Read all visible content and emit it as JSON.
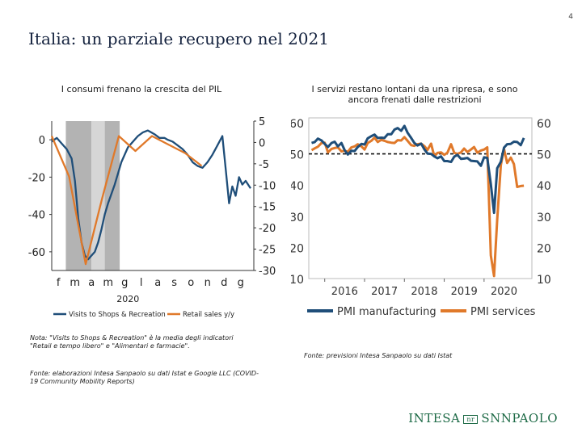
{
  "page": {
    "number": "4",
    "title": "Italia: un parziale recupero nel 2021"
  },
  "left_panel": {
    "subtitle": "I consumi frenano la crescita del PIL",
    "note": "Nota: \"Visits to Shops & Recreation\" è la media degli indicatori \"Retail e tempo libero\" e \"Alimentari e farmacie\".",
    "source": "Fonte: elaborazioni Intesa Sanpaolo su dati Istat e Google LLC (COVID-19 Community Mobility Reports)"
  },
  "right_panel": {
    "subtitle": "I servizi restano lontani da una ripresa, e sono ancora frenati dalle restrizioni",
    "source": "Fonte: previsioni Intesa Sanpaolo su dati Istat"
  },
  "brand": {
    "left": "INTESA",
    "mid": "nr",
    "right": "SNNPAOLO"
  },
  "colors": {
    "blue": "#1f4e79",
    "orange": "#e0792a",
    "shade_dark": "#b3b3b3",
    "shade_light": "#d6d6d6"
  },
  "chart_data": [
    {
      "type": "line",
      "title": "",
      "xlabel": "2020",
      "x_tick_labels": [
        "f",
        "m",
        "a",
        "m",
        "g",
        "l",
        "a",
        "s",
        "o",
        "n",
        "d",
        "g"
      ],
      "x_range": [
        0,
        12
      ],
      "left_axis": {
        "ylim": [
          -70,
          10
        ],
        "ticks": [
          0,
          -20,
          -40,
          -60
        ],
        "tick_labels": [
          "0",
          "-20",
          "-40",
          "-60"
        ]
      },
      "right_axis": {
        "ylim": [
          -30,
          5
        ],
        "ticks": [
          5,
          0,
          -5,
          -10,
          -15,
          -20,
          -25,
          -30
        ],
        "tick_labels": [
          "5",
          "0",
          "-5",
          "-10",
          "-15",
          "-20",
          "-25",
          "-30"
        ]
      },
      "shaded_regions": [
        {
          "x": [
            0.85,
            2.4
          ],
          "shade": "dark"
        },
        {
          "x": [
            2.4,
            3.2
          ],
          "shade": "light"
        },
        {
          "x": [
            3.2,
            4.1
          ],
          "shade": "dark"
        }
      ],
      "series": [
        {
          "name": "Visits to Shops & Recreation",
          "axis": "left",
          "color": "blue",
          "x": [
            0,
            0.3,
            0.6,
            0.9,
            1.2,
            1.4,
            1.6,
            1.8,
            2.0,
            2.2,
            2.4,
            2.6,
            2.8,
            3.0,
            3.2,
            3.4,
            3.6,
            3.8,
            4.0,
            4.2,
            4.4,
            4.6,
            4.8,
            5.0,
            5.2,
            5.5,
            5.8,
            6.0,
            6.2,
            6.5,
            6.8,
            7.0,
            7.3,
            7.6,
            7.9,
            8.2,
            8.5,
            8.8,
            9.1,
            9.4,
            9.7,
            10.0,
            10.3,
            10.5,
            10.7,
            10.9,
            11.1,
            11.3,
            11.5,
            11.7,
            12.0
          ],
          "values": [
            -1,
            1,
            -2,
            -5,
            -10,
            -22,
            -42,
            -55,
            -62,
            -64,
            -62,
            -60,
            -55,
            -48,
            -40,
            -34,
            -29,
            -24,
            -18,
            -12,
            -8,
            -4,
            -2,
            0,
            2,
            4,
            5,
            4,
            3,
            1,
            1,
            0,
            -1,
            -3,
            -5,
            -8,
            -12,
            -14,
            -15,
            -12,
            -8,
            -3,
            2,
            -16,
            -34,
            -25,
            -30,
            -20,
            -24,
            -22,
            -26
          ]
        },
        {
          "name": "Retail sales y/y",
          "axis": "right",
          "color": "orange",
          "x": [
            0,
            1.05,
            2.05,
            3.05,
            4.05,
            5.05,
            6.05,
            7.05,
            8.05,
            9.05
          ],
          "values": [
            1.5,
            -8,
            -28.5,
            -13,
            1.5,
            -2,
            1.5,
            -0.5,
            -2.5,
            -5.5
          ]
        }
      ],
      "legend": [
        "Visits to Shops & Recreation",
        "Retail sales y/y"
      ]
    },
    {
      "type": "line",
      "title": "",
      "x_tick_labels": [
        "2016",
        "2017",
        "2018",
        "2019",
        "2020"
      ],
      "x_range": [
        2015.6,
        2021.2
      ],
      "ylim": [
        10,
        60
      ],
      "yticks": [
        10,
        20,
        30,
        40,
        50,
        60
      ],
      "reference_line": 50,
      "series": [
        {
          "name": "PMI manufacturing",
          "color": "blue",
          "x": [
            2015.67,
            2015.75,
            2015.83,
            2015.92,
            2016.0,
            2016.08,
            2016.17,
            2016.25,
            2016.33,
            2016.42,
            2016.5,
            2016.58,
            2016.67,
            2016.75,
            2016.83,
            2016.92,
            2017.0,
            2017.08,
            2017.17,
            2017.25,
            2017.33,
            2017.42,
            2017.5,
            2017.58,
            2017.67,
            2017.75,
            2017.83,
            2017.92,
            2018.0,
            2018.08,
            2018.17,
            2018.25,
            2018.33,
            2018.42,
            2018.5,
            2018.58,
            2018.67,
            2018.75,
            2018.83,
            2018.92,
            2019.0,
            2019.08,
            2019.17,
            2019.25,
            2019.33,
            2019.42,
            2019.5,
            2019.58,
            2019.67,
            2019.75,
            2019.83,
            2019.92,
            2020.0,
            2020.08,
            2020.17,
            2020.25,
            2020.33,
            2020.42,
            2020.5,
            2020.58,
            2020.67,
            2020.75,
            2020.83,
            2020.92,
            2021.0
          ],
          "values": [
            53.5,
            53.8,
            54.9,
            54.3,
            53.2,
            52.2,
            53.5,
            53.9,
            52.4,
            53.5,
            51.2,
            49.8,
            51.0,
            50.9,
            52.2,
            53.2,
            53.0,
            55.0,
            55.7,
            56.2,
            55.1,
            55.2,
            55.1,
            56.3,
            56.3,
            57.8,
            58.3,
            57.4,
            59.0,
            56.8,
            55.1,
            53.5,
            52.7,
            53.3,
            51.5,
            50.1,
            50.0,
            49.2,
            48.6,
            49.2,
            47.7,
            47.7,
            47.4,
            49.1,
            49.7,
            48.4,
            48.5,
            48.7,
            47.8,
            47.7,
            47.6,
            46.2,
            48.9,
            48.7,
            40.3,
            31.1,
            45.4,
            47.5,
            52.0,
            53.1,
            53.2,
            53.9,
            53.8,
            52.8,
            55.1
          ]
        },
        {
          "name": "PMI services",
          "color": "orange",
          "x": [
            2015.67,
            2015.75,
            2015.83,
            2015.92,
            2016.0,
            2016.08,
            2016.17,
            2016.25,
            2016.33,
            2016.42,
            2016.5,
            2016.58,
            2016.67,
            2016.75,
            2016.83,
            2016.92,
            2017.0,
            2017.08,
            2017.17,
            2017.25,
            2017.33,
            2017.42,
            2017.5,
            2017.58,
            2017.67,
            2017.75,
            2017.83,
            2017.92,
            2018.0,
            2018.08,
            2018.17,
            2018.25,
            2018.33,
            2018.42,
            2018.5,
            2018.58,
            2018.67,
            2018.75,
            2018.83,
            2018.92,
            2019.0,
            2019.08,
            2019.17,
            2019.25,
            2019.33,
            2019.42,
            2019.5,
            2019.58,
            2019.67,
            2019.75,
            2019.83,
            2019.92,
            2020.0,
            2020.08,
            2020.17,
            2020.25,
            2020.33,
            2020.42,
            2020.5,
            2020.58,
            2020.67,
            2020.75,
            2020.83,
            2020.92,
            2021.0
          ],
          "values": [
            51.2,
            51.8,
            52.3,
            53.5,
            53.6,
            50.5,
            51.6,
            51.9,
            52.1,
            50.8,
            51.0,
            50.7,
            52.1,
            52.4,
            53.1,
            52.4,
            51.4,
            53.5,
            54.2,
            55.2,
            53.8,
            54.5,
            54.2,
            53.8,
            53.6,
            53.5,
            54.4,
            54.3,
            55.4,
            54.2,
            52.8,
            52.6,
            53.1,
            53.3,
            52.5,
            51.3,
            53.3,
            49.2,
            50.3,
            50.5,
            49.7,
            50.4,
            53.1,
            50.4,
            50.0,
            50.5,
            51.7,
            50.6,
            51.4,
            52.2,
            50.4,
            51.1,
            51.4,
            52.1,
            17.4,
            10.8,
            28.9,
            46.4,
            51.6,
            47.1,
            48.8,
            46.7,
            39.4,
            39.7,
            39.8
          ]
        }
      ],
      "legend": [
        "PMI manufacturing",
        "PMI services"
      ]
    }
  ]
}
